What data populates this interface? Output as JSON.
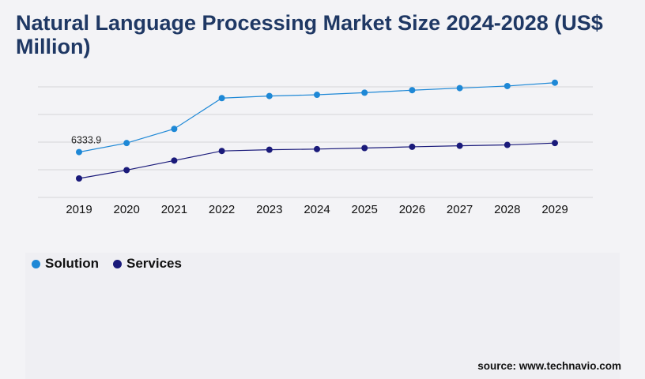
{
  "chart_data": {
    "type": "line",
    "title": "Natural Language Processing Market Size 2024-2028 (US$ Million)",
    "x": [
      "2019",
      "2020",
      "2021",
      "2022",
      "2023",
      "2024",
      "2025",
      "2026",
      "2027",
      "2028",
      "2029"
    ],
    "ylim": [
      0,
      22000
    ],
    "grid": true,
    "legend_position": "bottom-left",
    "series": [
      {
        "name": "Solution",
        "color": "#1e88d6",
        "values": [
          6333.9,
          8500,
          11900,
          19300,
          19800,
          20100,
          20600,
          21200,
          21700,
          22200,
          23000
        ],
        "data_labels": [
          "6333.9",
          "",
          "",
          "",
          "",
          "",
          "",
          "",
          "",
          "",
          ""
        ]
      },
      {
        "name": "Services",
        "color": "#1a1a7a",
        "values": [
          0,
          2000,
          4300,
          6600,
          6900,
          7050,
          7300,
          7600,
          7850,
          8050,
          8500
        ]
      }
    ]
  },
  "source": "source: www.technavio.com"
}
